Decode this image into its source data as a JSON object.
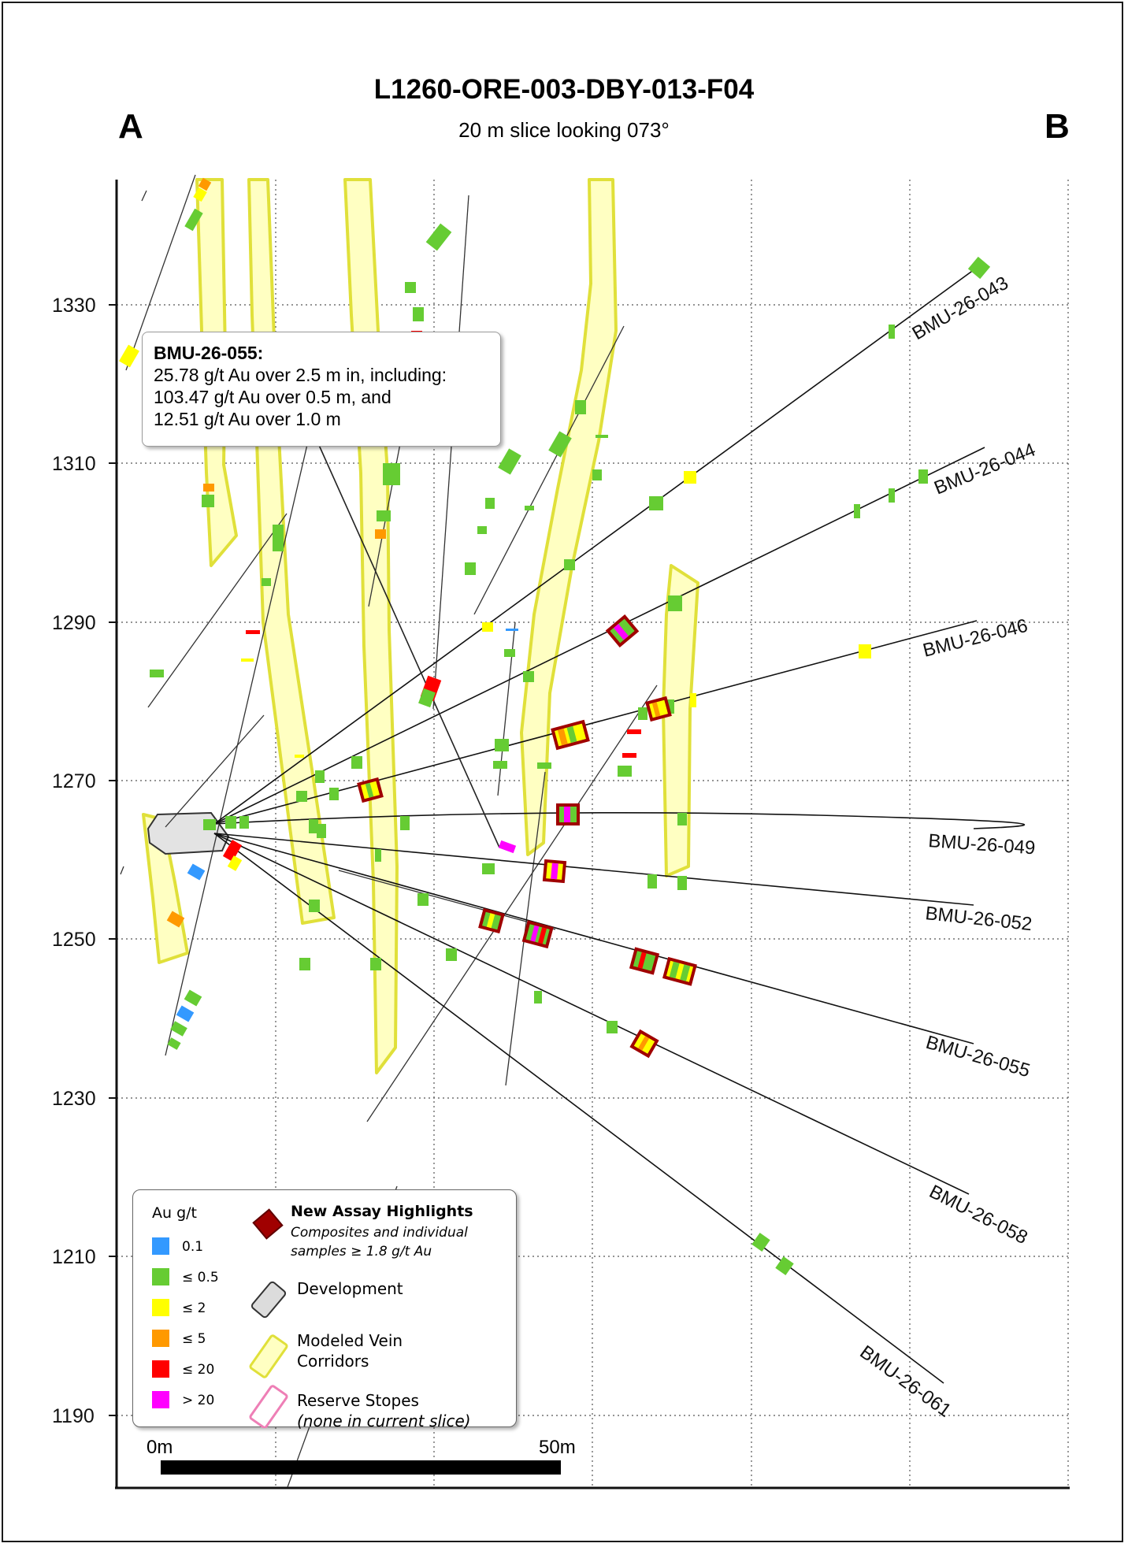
{
  "title": "L1260-ORE-003-DBY-013-F04",
  "subtitle": "20 m slice looking 073°",
  "section_ends": {
    "left": "A",
    "right": "B"
  },
  "elevation_labels": [
    "1330",
    "1310",
    "1290",
    "1270",
    "1250",
    "1230",
    "1210",
    "1190"
  ],
  "drill_holes": [
    "BMU-26-043",
    "BMU-26-044",
    "BMU-26-046",
    "BMU-26-049",
    "BMU-26-052",
    "BMU-26-055",
    "BMU-26-058",
    "BMU-26-061"
  ],
  "callout": {
    "hole": "BMU-26-055:",
    "line1": "25.78 g/t Au over 2.5 m in, including:",
    "line2": "103.47 g/t Au over 0.5 m, and",
    "line3": "12.51 g/t Au over 1.0 m"
  },
  "legend": {
    "heading": "Au g/t",
    "grades": [
      {
        "label": "0.1",
        "color": "#3399ff"
      },
      {
        "label": "≤ 0.5",
        "color": "#66cc33"
      },
      {
        "label": "≤ 2",
        "color": "#ffff00"
      },
      {
        "label": "≤ 5",
        "color": "#ff9900"
      },
      {
        "label": "≤ 20",
        "color": "#ff0000"
      },
      {
        "label": "> 20",
        "color": "#ff00ff"
      }
    ],
    "highlights_title": "New Assay Highlights",
    "highlights_subtitle": "Composites and individual samples ≥ 1.8 g/t Au",
    "development": "Development",
    "vein_corridors": "Modeled Vein Corridors",
    "reserve_stopes": "Reserve Stopes",
    "reserve_note": "(none in current slice)"
  },
  "scale_bar": {
    "start": "0m",
    "end": "50m"
  },
  "colors": {
    "vein_fill": "#ffffc2",
    "vein_stroke": "#e0e03a",
    "highlight_border": "#a00000",
    "grid": "#555555"
  }
}
